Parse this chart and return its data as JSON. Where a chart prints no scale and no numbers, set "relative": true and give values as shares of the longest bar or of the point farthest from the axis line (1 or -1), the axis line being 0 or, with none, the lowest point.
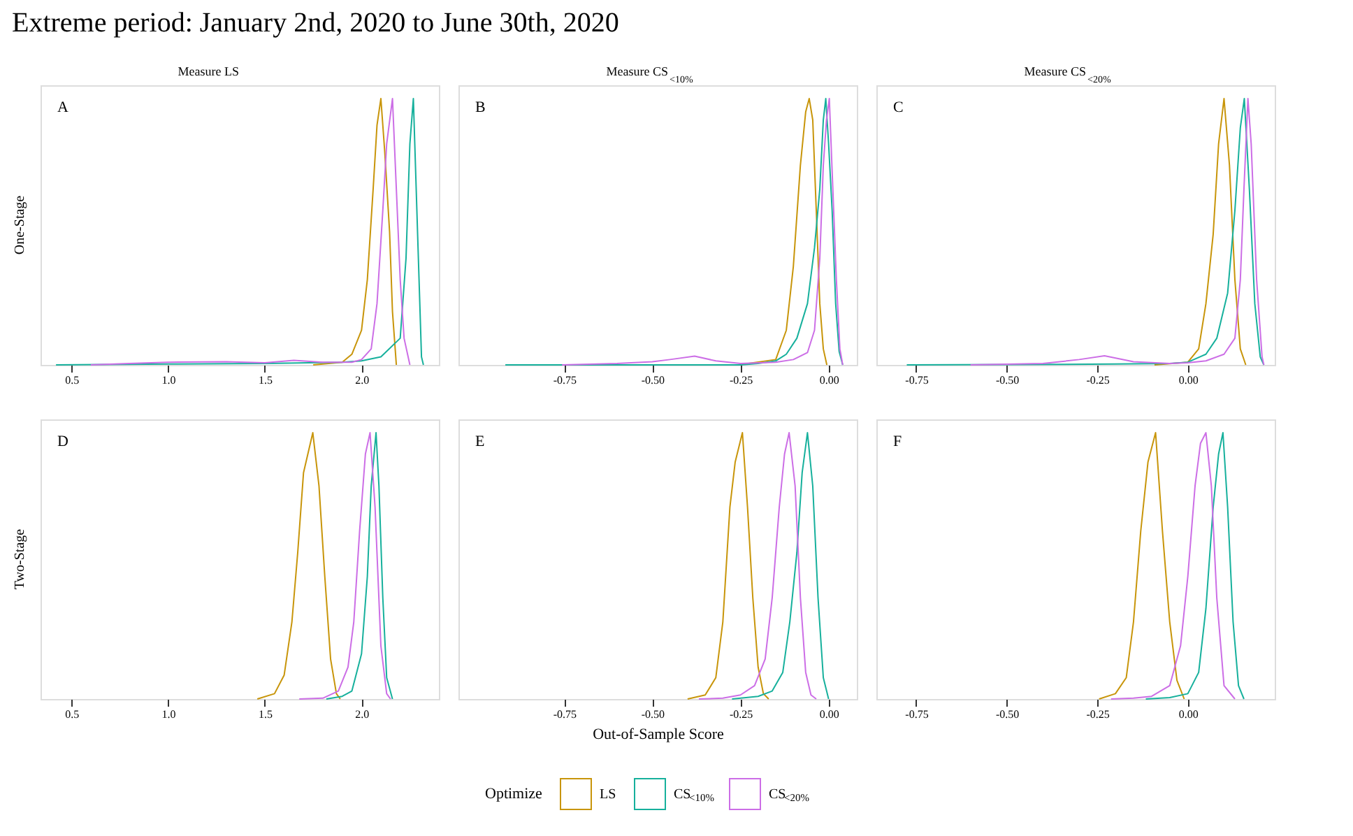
{
  "chart_data": [
    {
      "type": "line",
      "title": "Extreme period: January 2nd, 2020 to June 30th, 2020",
      "subtitle": "Measure LS",
      "ylabel": "One-Stage",
      "annotations": [
        "A"
      ],
      "relative": true,
      "tick_labels": "x",
      "legend": "bottom",
      "legend_title": "Optimize",
      "xlim": [
        0.34,
        2.4
      ],
      "xticks": [
        {
          "value": 0.5,
          "label": "0.5"
        },
        {
          "value": 1.0,
          "label": "1.0"
        },
        {
          "value": 1.5,
          "label": "1.5"
        },
        {
          "value": 2.0,
          "label": "2.0"
        }
      ],
      "series": [
        {
          "name": "LS",
          "color": "#c8950a",
          "x": [
            1.75,
            1.9,
            1.95,
            2.0,
            2.03,
            2.06,
            2.08,
            2.1,
            2.12,
            2.145,
            2.16,
            2.18
          ],
          "values": [
            0,
            0.01,
            0.04,
            0.13,
            0.32,
            0.66,
            0.9,
            1,
            0.8,
            0.5,
            0.2,
            0
          ]
        },
        {
          "name": "CS$_{<10%}$",
          "color": "#16b09c",
          "x": [
            0.42,
            1.0,
            1.5,
            1.9,
            2.0,
            2.1,
            2.2,
            2.23,
            2.25,
            2.268,
            2.29,
            2.31,
            2.32
          ],
          "values": [
            0,
            0.003,
            0.005,
            0.01,
            0.015,
            0.03,
            0.1,
            0.4,
            0.83,
            1,
            0.49,
            0.03,
            0
          ]
        },
        {
          "name": "CS$_{<20%}$",
          "color": "#cc6ee6",
          "x": [
            0.6,
            0.8,
            1.0,
            1.3,
            1.5,
            1.65,
            1.8,
            1.95,
            2.0,
            2.05,
            2.08,
            2.11,
            2.13,
            2.16,
            2.18,
            2.2,
            2.22,
            2.25
          ],
          "values": [
            0,
            0.005,
            0.01,
            0.012,
            0.008,
            0.017,
            0.01,
            0.01,
            0.02,
            0.06,
            0.23,
            0.58,
            0.83,
            1,
            0.66,
            0.32,
            0.1,
            0
          ]
        }
      ]
    },
    {
      "type": "line",
      "subtitle": "Measure CS$_{<10%}$",
      "annotations": [
        "B"
      ],
      "relative": true,
      "tick_labels": "x",
      "xlim": [
        -1.05,
        0.08
      ],
      "xticks": [
        {
          "value": -0.75,
          "label": "-0.75"
        },
        {
          "value": -0.5,
          "label": "-0.50"
        },
        {
          "value": -0.25,
          "label": "-0.25"
        },
        {
          "value": 0,
          "label": "0.00"
        }
      ],
      "series": [
        {
          "color": "#c8950a",
          "x": [
            -0.256,
            -0.15,
            -0.12,
            -0.1,
            -0.08,
            -0.065,
            -0.055,
            -0.045,
            -0.035,
            -0.025,
            -0.015,
            -0.005
          ],
          "values": [
            0,
            0.02,
            0.13,
            0.37,
            0.75,
            0.95,
            1,
            0.92,
            0.58,
            0.23,
            0.06,
            0
          ]
        },
        {
          "color": "#16b09c",
          "x": [
            -0.917,
            -0.25,
            -0.2,
            -0.15,
            -0.12,
            -0.09,
            -0.06,
            -0.04,
            -0.025,
            -0.015,
            -0.008,
            0.0,
            0.01,
            0.02,
            0.03,
            0.04
          ],
          "values": [
            0,
            0,
            0.005,
            0.015,
            0.04,
            0.1,
            0.23,
            0.44,
            0.66,
            0.92,
            1,
            0.83,
            0.58,
            0.23,
            0.05,
            0
          ]
        },
        {
          "color": "#cc6ee6",
          "x": [
            -0.756,
            -0.6,
            -0.5,
            -0.45,
            -0.38,
            -0.32,
            -0.25,
            -0.15,
            -0.1,
            -0.06,
            -0.04,
            -0.025,
            -0.015,
            -0.006,
            0.002,
            0.012,
            0.022,
            0.032,
            0.04
          ],
          "values": [
            0,
            0.005,
            0.012,
            0.02,
            0.033,
            0.015,
            0.005,
            0.01,
            0.02,
            0.046,
            0.13,
            0.4,
            0.75,
            0.92,
            1,
            0.66,
            0.32,
            0.06,
            0
          ]
        }
      ]
    },
    {
      "type": "line",
      "subtitle": "Measure CS$_{<20%}$",
      "annotations": [
        "C"
      ],
      "relative": true,
      "tick_labels": "x",
      "xlim": [
        -0.86,
        0.24
      ],
      "xticks": [
        {
          "value": -0.75,
          "label": "-0.75"
        },
        {
          "value": -0.5,
          "label": "-0.50"
        },
        {
          "value": -0.25,
          "label": "-0.25"
        },
        {
          "value": 0,
          "label": "0.00"
        }
      ],
      "series": [
        {
          "color": "#c8950a",
          "x": [
            -0.092,
            0.0,
            0.03,
            0.05,
            0.07,
            0.085,
            0.1,
            0.115,
            0.13,
            0.145,
            0.16
          ],
          "values": [
            0,
            0.01,
            0.06,
            0.23,
            0.49,
            0.83,
            1,
            0.75,
            0.32,
            0.06,
            0
          ]
        },
        {
          "color": "#16b09c",
          "x": [
            -0.776,
            -0.2,
            -0.05,
            0.0,
            0.05,
            0.08,
            0.11,
            0.13,
            0.145,
            0.156,
            0.17,
            0.185,
            0.2,
            0.21
          ],
          "values": [
            0,
            0.003,
            0.005,
            0.01,
            0.04,
            0.1,
            0.27,
            0.58,
            0.89,
            1,
            0.66,
            0.23,
            0.03,
            0
          ]
        },
        {
          "color": "#cc6ee6",
          "x": [
            -0.6,
            -0.4,
            -0.3,
            -0.23,
            -0.15,
            -0.05,
            0.0,
            0.05,
            0.1,
            0.13,
            0.145,
            0.155,
            0.166,
            0.175,
            0.19,
            0.205,
            0.21
          ],
          "values": [
            0,
            0.005,
            0.02,
            0.034,
            0.012,
            0.005,
            0.008,
            0.015,
            0.04,
            0.1,
            0.32,
            0.66,
            1,
            0.83,
            0.32,
            0.03,
            0
          ]
        }
      ]
    },
    {
      "type": "line",
      "ylabel": "Two-Stage",
      "annotations": [
        "D"
      ],
      "relative": true,
      "tick_labels": "x",
      "xlim": [
        0.34,
        2.4
      ],
      "xticks": [
        {
          "value": 0.5,
          "label": "0.5"
        },
        {
          "value": 1.0,
          "label": "1.0"
        },
        {
          "value": 1.5,
          "label": "1.5"
        },
        {
          "value": 2.0,
          "label": "2.0"
        }
      ],
      "series": [
        {
          "color": "#c8950a",
          "x": [
            1.461,
            1.55,
            1.6,
            1.64,
            1.67,
            1.7,
            1.748,
            1.78,
            1.81,
            1.84,
            1.87,
            1.89
          ],
          "values": [
            0,
            0.02,
            0.09,
            0.29,
            0.55,
            0.85,
            1,
            0.8,
            0.46,
            0.15,
            0.02,
            0
          ]
        },
        {
          "color": "#16b09c",
          "x": [
            1.818,
            1.9,
            1.95,
            2.0,
            2.03,
            2.05,
            2.075,
            2.09,
            2.11,
            2.13,
            2.16
          ],
          "values": [
            0,
            0.01,
            0.03,
            0.17,
            0.46,
            0.8,
            1,
            0.8,
            0.38,
            0.08,
            0
          ]
        },
        {
          "color": "#cc6ee6",
          "x": [
            1.678,
            1.8,
            1.88,
            1.93,
            1.96,
            1.99,
            2.02,
            2.044,
            2.07,
            2.1,
            2.13,
            2.15
          ],
          "values": [
            0,
            0.003,
            0.03,
            0.12,
            0.29,
            0.63,
            0.92,
            1,
            0.72,
            0.2,
            0.02,
            0
          ]
        }
      ]
    },
    {
      "type": "line",
      "xlabel": "Out-of-Sample Score",
      "annotations": [
        "E"
      ],
      "relative": true,
      "tick_labels": "x",
      "xlim": [
        -1.05,
        0.08
      ],
      "xticks": [
        {
          "value": -0.75,
          "label": "-0.75"
        },
        {
          "value": -0.5,
          "label": "-0.50"
        },
        {
          "value": -0.25,
          "label": "-0.25"
        },
        {
          "value": 0,
          "label": "0.00"
        }
      ],
      "series": [
        {
          "color": "#c8950a",
          "x": [
            -0.4,
            -0.35,
            -0.32,
            -0.3,
            -0.28,
            -0.265,
            -0.2445,
            -0.23,
            -0.215,
            -0.2,
            -0.185,
            -0.17
          ],
          "values": [
            0,
            0.015,
            0.08,
            0.29,
            0.72,
            0.89,
            1,
            0.72,
            0.38,
            0.12,
            0.02,
            0
          ]
        },
        {
          "color": "#16b09c",
          "x": [
            -0.274,
            -0.2,
            -0.16,
            -0.13,
            -0.11,
            -0.09,
            -0.075,
            -0.06,
            -0.045,
            -0.03,
            -0.015,
            0.0
          ],
          "values": [
            0,
            0.01,
            0.03,
            0.1,
            0.29,
            0.55,
            0.85,
            1,
            0.8,
            0.38,
            0.08,
            0
          ]
        },
        {
          "color": "#cc6ee6",
          "x": [
            -0.368,
            -0.3,
            -0.25,
            -0.21,
            -0.18,
            -0.16,
            -0.14,
            -0.125,
            -0.112,
            -0.095,
            -0.08,
            -0.065,
            -0.05,
            -0.035
          ],
          "values": [
            0,
            0.003,
            0.015,
            0.05,
            0.15,
            0.38,
            0.72,
            0.92,
            1,
            0.8,
            0.38,
            0.1,
            0.015,
            0
          ]
        }
      ]
    },
    {
      "type": "line",
      "annotations": [
        "F"
      ],
      "relative": true,
      "tick_labels": "x",
      "xlim": [
        -0.86,
        0.24
      ],
      "xticks": [
        {
          "value": -0.75,
          "label": "-0.75"
        },
        {
          "value": -0.5,
          "label": "-0.50"
        },
        {
          "value": -0.25,
          "label": "-0.25"
        },
        {
          "value": 0,
          "label": "0.00"
        }
      ],
      "series": [
        {
          "color": "#c8950a",
          "x": [
            -0.245,
            -0.2,
            -0.17,
            -0.15,
            -0.13,
            -0.11,
            -0.089,
            -0.07,
            -0.05,
            -0.03,
            -0.01
          ],
          "values": [
            0,
            0.02,
            0.08,
            0.29,
            0.63,
            0.89,
            1,
            0.63,
            0.29,
            0.07,
            0
          ]
        },
        {
          "color": "#16b09c",
          "x": [
            -0.116,
            -0.05,
            0.0,
            0.03,
            0.05,
            0.07,
            0.085,
            0.097,
            0.11,
            0.125,
            0.14,
            0.155
          ],
          "values": [
            0,
            0.005,
            0.02,
            0.1,
            0.34,
            0.72,
            0.92,
            1,
            0.72,
            0.29,
            0.05,
            0
          ]
        },
        {
          "color": "#cc6ee6",
          "x": [
            -0.212,
            -0.15,
            -0.1,
            -0.05,
            -0.02,
            0.0,
            0.02,
            0.035,
            0.05,
            0.065,
            0.08,
            0.1,
            0.13
          ],
          "values": [
            0,
            0.003,
            0.01,
            0.05,
            0.2,
            0.46,
            0.8,
            0.96,
            1,
            0.8,
            0.38,
            0.05,
            0
          ]
        }
      ]
    }
  ]
}
